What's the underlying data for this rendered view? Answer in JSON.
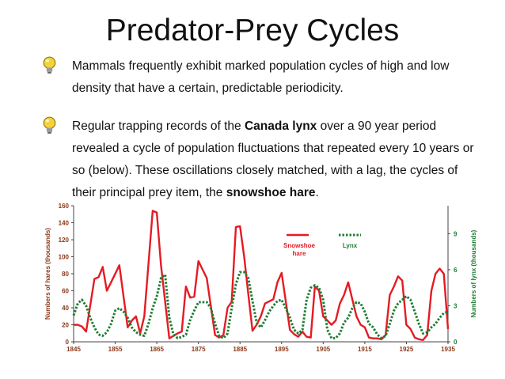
{
  "slide": {
    "title": "Predator-Prey Cycles",
    "bullets": [
      {
        "text": "Mammals frequently exhibit marked population cycles of high and low density that have a certain, predictable periodicity."
      },
      {
        "pre": "Regular trapping records of the ",
        "bold1": "Canada lynx",
        "mid": " over a 90 year period revealed a cycle of population fluctuations that repeated every 10 years or so (below). These oscillations closely matched, with a lag, the cycles of their principal prey item, the ",
        "bold2": "snowshoe hare",
        "post": "."
      }
    ],
    "bullet_icon": "lightbulb-icon"
  },
  "chart_data": {
    "type": "line",
    "ylabel": "Numbers of hares   (thousands)",
    "y2label": "Numbers of lynx   (thousands)",
    "xlim": [
      1845,
      1935
    ],
    "ylim": [
      0,
      160
    ],
    "y2lim": [
      0,
      11.33
    ],
    "x_ticks": [
      1845,
      1855,
      1865,
      1875,
      1885,
      1895,
      1905,
      1915,
      1925,
      1935
    ],
    "y_ticks": [
      0,
      20,
      40,
      60,
      80,
      100,
      120,
      140,
      160
    ],
    "y2_ticks": [
      0,
      3,
      6,
      9
    ],
    "grid": false,
    "colors": {
      "hare": "#e41b23",
      "lynx": "#1e7d32",
      "axis_text": "#8b3a1a"
    },
    "series": [
      {
        "name": "Snowshoe hare",
        "axis": "left",
        "x": [
          1845,
          1846,
          1847,
          1848,
          1850,
          1851,
          1852,
          1853,
          1854,
          1856,
          1858,
          1859,
          1860,
          1861,
          1862,
          1864,
          1865,
          1866,
          1868,
          1869,
          1870,
          1871,
          1872,
          1873,
          1874,
          1875,
          1876,
          1877,
          1879,
          1880,
          1881,
          1882,
          1883,
          1884,
          1885,
          1886,
          1887,
          1888,
          1889,
          1890,
          1891,
          1893,
          1894,
          1895,
          1897,
          1898,
          1899,
          1900,
          1901,
          1902,
          1903,
          1904,
          1905,
          1906,
          1907,
          1908,
          1909,
          1910,
          1911,
          1912,
          1913,
          1914,
          1915,
          1916,
          1917,
          1918,
          1919,
          1920,
          1921,
          1922,
          1923,
          1924,
          1925,
          1926,
          1927,
          1928,
          1929,
          1930,
          1931,
          1932,
          1933,
          1934,
          1935
        ],
        "values": [
          20,
          20,
          18,
          12,
          74,
          76,
          88,
          60,
          70,
          90,
          17,
          25,
          30,
          10,
          30,
          154,
          152,
          90,
          4,
          7,
          10,
          12,
          65,
          52,
          53,
          95,
          85,
          75,
          8,
          5,
          8,
          40,
          47,
          135,
          136,
          100,
          56,
          13,
          20,
          30,
          45,
          50,
          70,
          81,
          14,
          9,
          6,
          12,
          6,
          5,
          65,
          60,
          30,
          25,
          20,
          25,
          45,
          55,
          70,
          50,
          30,
          20,
          17,
          5,
          4,
          4,
          3,
          8,
          55,
          65,
          77,
          72,
          20,
          15,
          5,
          3,
          2,
          8,
          60,
          80,
          86,
          80,
          15
        ]
      },
      {
        "name": "Lynx",
        "axis": "right",
        "x": [
          1845,
          1846,
          1847,
          1848,
          1849,
          1850,
          1851,
          1852,
          1853,
          1854,
          1855,
          1856,
          1857,
          1858,
          1859,
          1860,
          1861,
          1862,
          1863,
          1864,
          1865,
          1866,
          1867,
          1868,
          1869,
          1870,
          1871,
          1872,
          1873,
          1874,
          1875,
          1876,
          1877,
          1878,
          1879,
          1880,
          1881,
          1882,
          1883,
          1884,
          1885,
          1886,
          1887,
          1888,
          1889,
          1890,
          1891,
          1892,
          1893,
          1894,
          1895,
          1896,
          1897,
          1898,
          1899,
          1900,
          1901,
          1902,
          1903,
          1904,
          1905,
          1906,
          1907,
          1908,
          1909,
          1910,
          1911,
          1912,
          1913,
          1914,
          1915,
          1916,
          1917,
          1918,
          1919,
          1920,
          1921,
          1922,
          1923,
          1924,
          1925,
          1926,
          1927,
          1928,
          1929,
          1930,
          1931,
          1932,
          1933,
          1934,
          1935
        ],
        "values": [
          2.2,
          3.2,
          3.5,
          3.0,
          2.0,
          1.2,
          0.6,
          0.5,
          0.8,
          1.5,
          2.6,
          2.8,
          2.5,
          2.0,
          1.2,
          0.8,
          0.6,
          0.5,
          1.5,
          2.8,
          3.8,
          5.3,
          5.6,
          2.0,
          0.6,
          0.3,
          0.4,
          0.6,
          1.8,
          2.6,
          3.3,
          3.3,
          3.3,
          2.8,
          1.5,
          0.5,
          0.3,
          0.7,
          2.8,
          4.8,
          5.8,
          5.8,
          5.3,
          3.4,
          1.6,
          1.2,
          1.8,
          2.5,
          3.0,
          3.4,
          3.5,
          2.8,
          2.0,
          1.0,
          0.7,
          1.0,
          3.5,
          4.5,
          4.7,
          4.5,
          3.5,
          1.0,
          0.3,
          0.3,
          0.7,
          1.6,
          2.0,
          2.8,
          3.3,
          3.2,
          2.5,
          1.5,
          1.2,
          0.6,
          0.3,
          0.5,
          1.5,
          2.6,
          3.2,
          3.5,
          3.8,
          3.5,
          2.5,
          1.5,
          0.7,
          0.8,
          1.2,
          1.5,
          2.0,
          2.4,
          2.5
        ]
      }
    ]
  }
}
